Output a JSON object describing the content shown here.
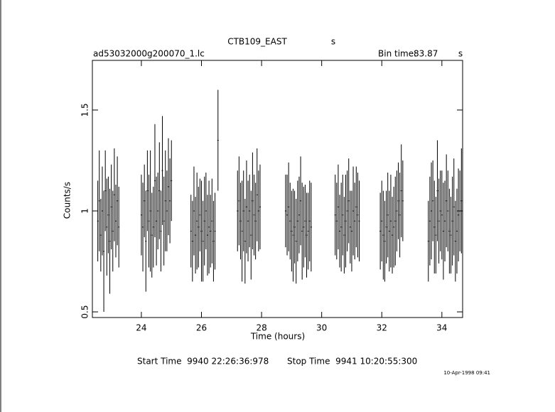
{
  "chart_data": {
    "type": "errorbar",
    "title": "CTB109_EAST",
    "title_unit": "s",
    "file_label": "ad53032000g200070_1.lc",
    "bin_time_label": "Bin time:",
    "bin_time_value": "83.87",
    "bin_time_unit": "s",
    "xlabel": "Time (hours)",
    "ylabel": "Counts/s",
    "start_time": "Start Time  9940 22:26:36:978",
    "stop_time": "Stop Time  9941 10:20:55:300",
    "timestamp": "10-Apr-1998 09:41",
    "xlim": [
      22.37,
      34.69
    ],
    "ylim": [
      0.472,
      1.746
    ],
    "xticks": [
      24,
      26,
      28,
      30,
      32,
      34
    ],
    "yticks": [
      0.5,
      1,
      1.5
    ],
    "color": "#000000",
    "x": [
      22.55,
      22.6,
      22.65,
      22.7,
      22.75,
      22.8,
      22.85,
      22.9,
      22.95,
      23.0,
      23.05,
      23.1,
      23.15,
      23.2,
      23.25,
      24.0,
      24.05,
      24.1,
      24.15,
      24.2,
      24.25,
      24.3,
      24.35,
      24.4,
      24.45,
      24.5,
      24.55,
      24.6,
      24.65,
      24.7,
      24.75,
      24.8,
      24.85,
      24.9,
      24.95,
      25.0,
      25.65,
      25.7,
      25.75,
      25.8,
      25.85,
      25.9,
      25.95,
      26.0,
      26.05,
      26.1,
      26.15,
      26.2,
      26.25,
      26.3,
      26.35,
      26.4,
      26.45,
      26.55,
      27.2,
      27.25,
      27.3,
      27.35,
      27.4,
      27.45,
      27.5,
      27.55,
      27.6,
      27.65,
      27.7,
      27.75,
      27.8,
      27.85,
      27.9,
      27.95,
      28.8,
      28.85,
      28.9,
      28.95,
      29.0,
      29.05,
      29.1,
      29.15,
      29.2,
      29.25,
      29.3,
      29.35,
      29.4,
      29.45,
      29.5,
      29.55,
      29.6,
      29.65,
      30.45,
      30.5,
      30.55,
      30.6,
      30.65,
      30.7,
      30.75,
      30.8,
      30.85,
      30.9,
      30.95,
      31.0,
      31.05,
      31.1,
      31.15,
      31.2,
      31.25,
      31.95,
      32.0,
      32.05,
      32.1,
      32.15,
      32.2,
      32.25,
      32.3,
      32.35,
      32.4,
      32.45,
      32.5,
      32.55,
      32.6,
      32.65,
      32.7,
      33.55,
      33.6,
      33.65,
      33.7,
      33.75,
      33.8,
      33.85,
      33.9,
      33.95,
      34.0,
      34.05,
      34.1,
      34.15,
      34.2,
      34.25,
      34.3,
      34.35,
      34.4,
      34.45,
      34.5,
      34.55,
      34.6,
      34.65
    ],
    "values": [
      0.95,
      1.05,
      0.88,
      1.0,
      0.8,
      1.1,
      0.92,
      0.98,
      0.85,
      1.02,
      0.9,
      1.08,
      0.95,
      1.05,
      0.92,
      0.98,
      0.92,
      1.05,
      0.85,
      1.1,
      0.95,
      1.0,
      0.88,
      0.92,
      1.15,
      0.95,
      1.0,
      1.1,
      0.9,
      1.2,
      0.95,
      1.05,
      1.0,
      1.12,
      1.05,
      1.15,
      0.9,
      0.85,
      1.0,
      0.88,
      0.95,
      0.92,
      0.98,
      0.9,
      0.85,
      0.95,
      1.0,
      0.88,
      0.92,
      0.9,
      0.95,
      0.85,
      0.9,
      1.35,
      1.0,
      1.05,
      0.95,
      0.9,
      1.0,
      0.85,
      1.02,
      0.95,
      1.0,
      0.88,
      1.05,
      0.98,
      0.95,
      1.08,
      1.0,
      1.02,
      1.0,
      0.98,
      1.02,
      0.95,
      0.9,
      0.88,
      0.92,
      0.85,
      0.95,
      0.98,
      1.05,
      0.9,
      0.92,
      0.95,
      0.88,
      0.9,
      0.95,
      0.92,
      0.98,
      0.95,
      1.02,
      0.9,
      0.92,
      0.98,
      0.88,
      0.95,
      1.0,
      1.05,
      0.92,
      0.9,
      1.0,
      0.95,
      1.02,
      0.98,
      0.95,
      0.9,
      0.95,
      0.88,
      0.85,
      0.92,
      0.98,
      0.9,
      0.95,
      0.88,
      0.92,
      0.95,
      1.0,
      1.05,
      0.98,
      1.1,
      1.05,
      0.85,
      0.95,
      1.0,
      1.05,
      0.92,
      0.88,
      1.1,
      0.95,
      1.0,
      0.98,
      0.9,
      0.95,
      1.05,
      1.0,
      0.9,
      0.88,
      0.95,
      1.02,
      0.85,
      0.9,
      0.98,
      1.0,
      1.05
    ],
    "errors": [
      0.2,
      0.25,
      0.18,
      0.22,
      0.3,
      0.2,
      0.24,
      0.19,
      0.26,
      0.21,
      0.2,
      0.23,
      0.18,
      0.22,
      0.2,
      0.2,
      0.22,
      0.18,
      0.25,
      0.2,
      0.23,
      0.3,
      0.21,
      0.2,
      0.28,
      0.22,
      0.19,
      0.24,
      0.2,
      0.27,
      0.22,
      0.25,
      0.2,
      0.24,
      0.21,
      0.2,
      0.18,
      0.2,
      0.22,
      0.19,
      0.24,
      0.2,
      0.18,
      0.25,
      0.2,
      0.22,
      0.19,
      0.2,
      0.23,
      0.18,
      0.21,
      0.2,
      0.19,
      0.25,
      0.2,
      0.22,
      0.19,
      0.25,
      0.2,
      0.21,
      0.23,
      0.2,
      0.18,
      0.22,
      0.24,
      0.2,
      0.19,
      0.23,
      0.2,
      0.21,
      0.18,
      0.2,
      0.22,
      0.19,
      0.2,
      0.23,
      0.18,
      0.21,
      0.2,
      0.19,
      0.22,
      0.24,
      0.2,
      0.18,
      0.21,
      0.19,
      0.2,
      0.22,
      0.2,
      0.19,
      0.21,
      0.18,
      0.22,
      0.2,
      0.19,
      0.23,
      0.2,
      0.21,
      0.18,
      0.2,
      0.22,
      0.19,
      0.2,
      0.21,
      0.2,
      0.19,
      0.2,
      0.22,
      0.2,
      0.18,
      0.21,
      0.2,
      0.23,
      0.19,
      0.2,
      0.22,
      0.2,
      0.19,
      0.21,
      0.23,
      0.2,
      0.2,
      0.22,
      0.24,
      0.2,
      0.23,
      0.19,
      0.25,
      0.21,
      0.2,
      0.22,
      0.24,
      0.2,
      0.23,
      0.2,
      0.21,
      0.19,
      0.22,
      0.24,
      0.2,
      0.21,
      0.23,
      0.2,
      0.26
    ]
  }
}
